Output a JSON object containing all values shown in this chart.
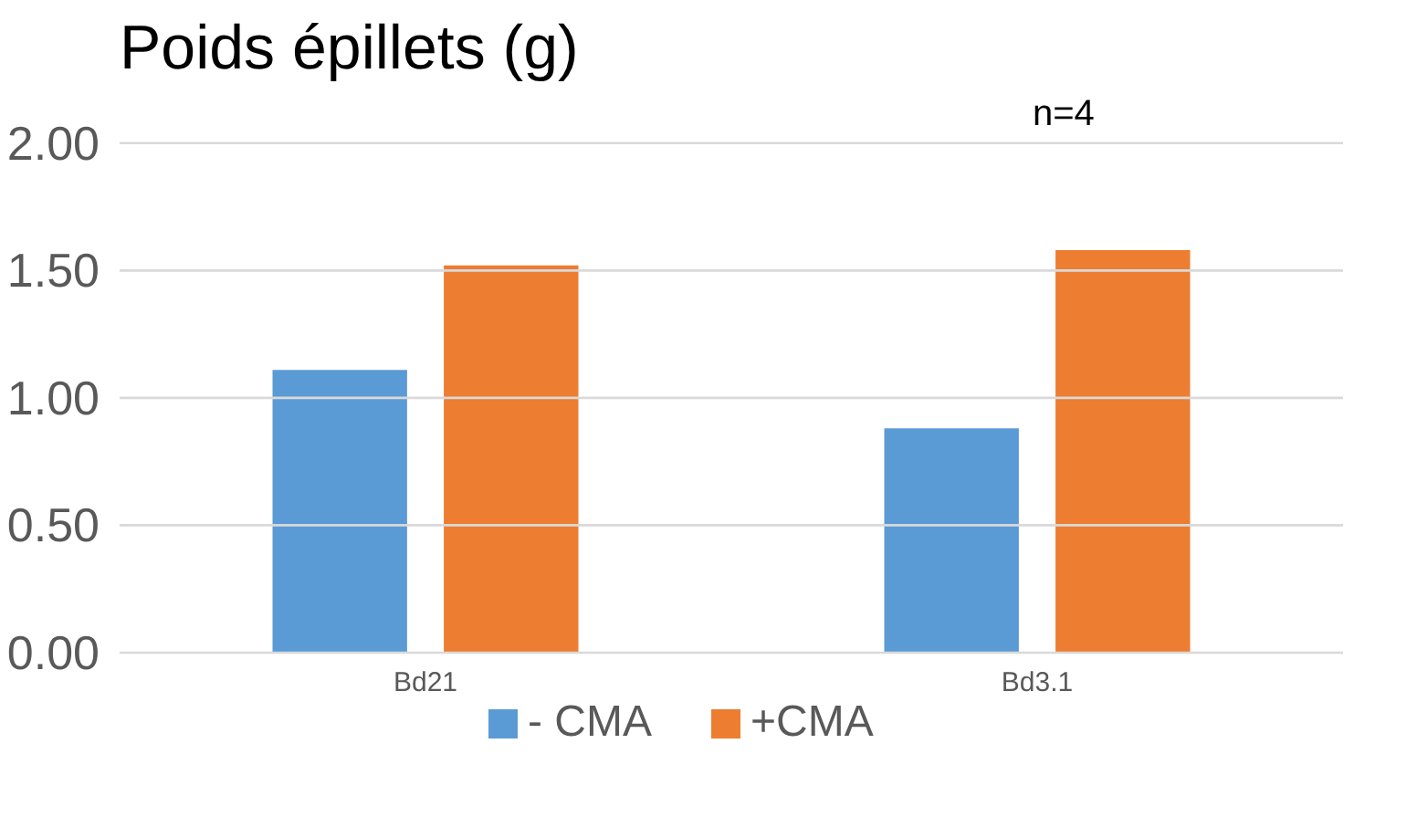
{
  "chart_data": {
    "type": "bar",
    "title": "Poids épillets (g)",
    "annotations": [
      "n=4"
    ],
    "categories": [
      "Bd21",
      "Bd3.1"
    ],
    "series": [
      {
        "name": "- CMA",
        "color": "#5b9bd5",
        "values": [
          1.11,
          0.88
        ]
      },
      {
        "name": "+CMA",
        "color": "#ed7d31",
        "values": [
          1.52,
          1.58
        ]
      }
    ],
    "ylim": [
      0,
      2
    ],
    "yticks": [
      {
        "value": 0,
        "label": "0.00"
      },
      {
        "value": 0.5,
        "label": "0.50"
      },
      {
        "value": 1,
        "label": "1.00"
      },
      {
        "value": 1.5,
        "label": "1.50"
      },
      {
        "value": 2,
        "label": "2.00"
      }
    ],
    "grid": "y",
    "legend": "bottom"
  }
}
